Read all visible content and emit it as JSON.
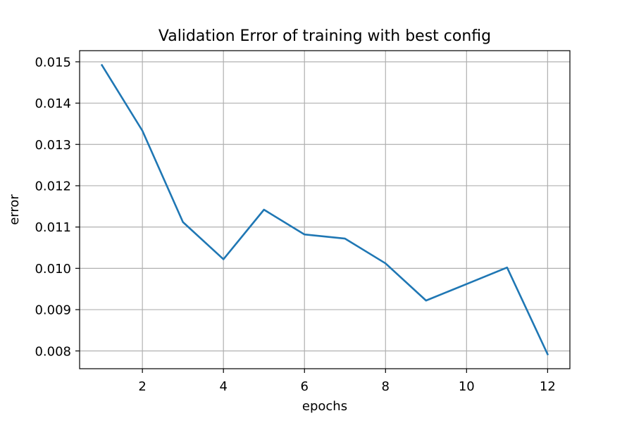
{
  "chart_data": {
    "type": "line",
    "title": "Validation Error of training with best config",
    "xlabel": "epochs",
    "ylabel": "error",
    "x": [
      1,
      2,
      3,
      4,
      5,
      6,
      7,
      8,
      9,
      10,
      11,
      12
    ],
    "series": [
      {
        "values": [
          0.01492,
          0.01333,
          0.01112,
          0.01022,
          0.01142,
          0.01082,
          0.01072,
          0.01012,
          0.00922,
          0.00962,
          0.01002,
          0.00792
        ],
        "color": "#1f77b4"
      }
    ],
    "xlim": [
      0.45,
      12.55
    ],
    "ylim": [
      0.00757,
      0.01527
    ],
    "xticks": [
      2,
      4,
      6,
      8,
      10,
      12
    ],
    "xtick_labels": [
      "2",
      "4",
      "6",
      "8",
      "10",
      "12"
    ],
    "yticks": [
      0.008,
      0.009,
      0.01,
      0.011,
      0.012,
      0.013,
      0.014,
      0.015
    ],
    "ytick_labels": [
      "0.008",
      "0.009",
      "0.010",
      "0.011",
      "0.012",
      "0.013",
      "0.014",
      "0.015"
    ],
    "grid": true,
    "grid_color": "#b0b0b0"
  }
}
